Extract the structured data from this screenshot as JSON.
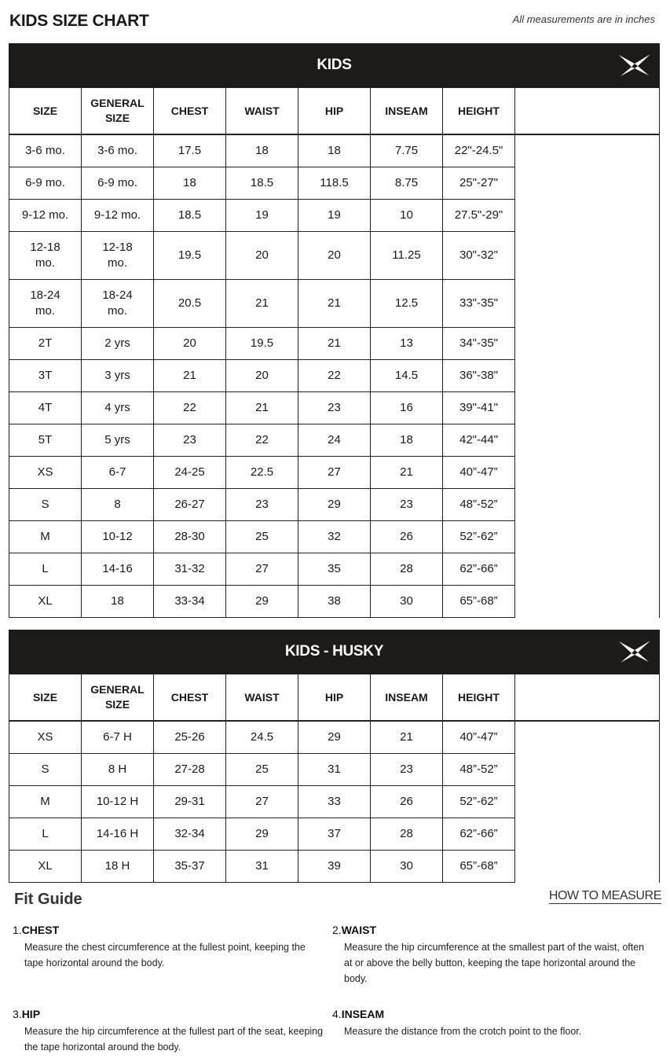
{
  "header": {
    "title": "KIDS SIZE CHART",
    "note": "All measurements are in inches"
  },
  "icons": {
    "logo": "brand-x-logo"
  },
  "columns": [
    "SIZE",
    "GENERAL SIZE",
    "CHEST",
    "WAIST",
    "HIP",
    "INSEAM",
    "HEIGHT"
  ],
  "tables": [
    {
      "title": "KIDS",
      "rows": [
        [
          "3-6 mo.",
          "3-6 mo.",
          "17.5",
          "18",
          "18",
          "7.75",
          "22\"-24.5\""
        ],
        [
          "6-9 mo.",
          "6-9 mo.",
          "18",
          "18.5",
          "118.5",
          "8.75",
          "25\"-27\""
        ],
        [
          "9-12 mo.",
          "9-12 mo.",
          "18.5",
          "19",
          "19",
          "10",
          "27.5\"-29\""
        ],
        [
          "12-18 mo.",
          "12-18 mo.",
          "19.5",
          "20",
          "20",
          "11.25",
          "30\"-32\""
        ],
        [
          "18-24 mo.",
          "18-24 mo.",
          "20.5",
          "21",
          "21",
          "12.5",
          "33\"-35\""
        ],
        [
          "2T",
          "2 yrs",
          "20",
          "19.5",
          "21",
          "13",
          "34\"-35\""
        ],
        [
          "3T",
          "3 yrs",
          "21",
          "20",
          "22",
          "14.5",
          "36\"-38\""
        ],
        [
          "4T",
          "4 yrs",
          "22",
          "21",
          "23",
          "16",
          "39\"-41\""
        ],
        [
          "5T",
          "5 yrs",
          "23",
          "22",
          "24",
          "18",
          "42\"-44\""
        ],
        [
          "XS",
          "6-7",
          "24-25",
          "22.5",
          "27",
          "21",
          "40”-47”"
        ],
        [
          "S",
          "8",
          "26-27",
          "23",
          "29",
          "23",
          "48”-52”"
        ],
        [
          "M",
          "10-12",
          "28-30",
          "25",
          "32",
          "26",
          "52”-62”"
        ],
        [
          "L",
          "14-16",
          "31-32",
          "27",
          "35",
          "28",
          "62”-66”"
        ],
        [
          "XL",
          "18",
          "33-34",
          "29",
          "38",
          "30",
          "65”-68”"
        ]
      ]
    },
    {
      "title": "KIDS - HUSKY",
      "rows": [
        [
          "XS",
          "6-7 H",
          "25-26",
          "24.5",
          "29",
          "21",
          "40”-47”"
        ],
        [
          "S",
          "8 H",
          "27-28",
          "25",
          "31",
          "23",
          "48”-52”"
        ],
        [
          "M",
          "10-12 H",
          "29-31",
          "27",
          "33",
          "26",
          "52”-62”"
        ],
        [
          "L",
          "14-16 H",
          "32-34",
          "29",
          "37",
          "28",
          "62”-66”"
        ],
        [
          "XL",
          "18 H",
          "35-37",
          "31",
          "39",
          "30",
          "65”-68”"
        ]
      ]
    }
  ],
  "fit_guide": {
    "title": "Fit Guide",
    "link": "HOW TO MEASURE",
    "items": [
      {
        "num": "1.",
        "name": "CHEST",
        "text": "Measure the chest circumference at the fullest point, keeping the tape horizontal around the body."
      },
      {
        "num": "2.",
        "name": "WAIST",
        "text": "Measure the hip circumference at the smallest part of the waist, often at or above the belly button, keeping the tape horizontal around the body."
      },
      {
        "num": "3.",
        "name": "HIP",
        "text": "Measure the hip circumference at the fullest part of the seat, keeping the tape horizontal around the body."
      },
      {
        "num": "4.",
        "name": "INSEAM",
        "text": "Measure the distance from the crotch point to the floor."
      }
    ]
  }
}
